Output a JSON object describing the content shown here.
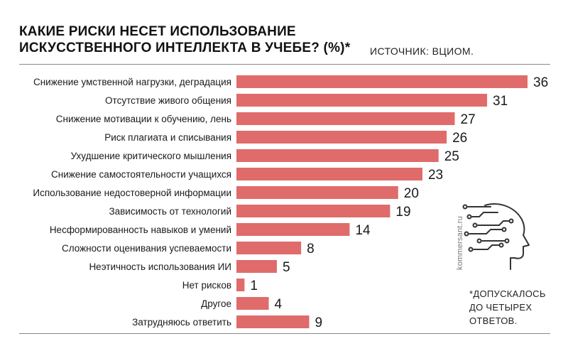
{
  "title_line1": "КАКИЕ РИСКИ НЕСЕТ ИСПОЛЬЗОВАНИЕ",
  "title_line2": "ИСКУССТВЕННОГО ИНТЕЛЛЕКТА В УЧЕБЕ? (%)*",
  "source": "ИСТОЧНИК: ВЦИОМ.",
  "footnote": [
    "*ДОПУСКАЛОСЬ",
    "ДО ЧЕТЫРЕХ",
    "ОТВЕТОВ."
  ],
  "brand": "kommersant.ru",
  "icon": "head-circuit-icon",
  "colors": {
    "bar": "#e06b6b",
    "text": "#1a1a1a"
  },
  "chart_data": {
    "type": "bar",
    "orientation": "horizontal",
    "categories": [
      "Снижение умственной нагрузки, деградация",
      "Отсутствие живого общения",
      "Снижение мотивации к обучению, лень",
      "Риск плагиата и списывания",
      "Ухудшение критического мышления",
      "Снижение самостоятельности учащихся",
      "Использование недостоверной информации",
      "Зависимость от технологий",
      "Несформированность навыков и умений",
      "Сложности оценивания успеваемости",
      "Неэтичность использования ИИ",
      "Нет рисков",
      "Другое",
      "Затрудняюсь ответить"
    ],
    "values": [
      36,
      31,
      27,
      26,
      25,
      23,
      20,
      19,
      14,
      8,
      5,
      1,
      4,
      9
    ],
    "title": "КАКИЕ РИСКИ НЕСЕТ ИСПОЛЬЗОВАНИЕ ИСКУССТВЕННОГО ИНТЕЛЛЕКТА В УЧЕБЕ? (%)*",
    "xlabel": "",
    "ylabel": "",
    "xlim": [
      0,
      36
    ],
    "grid": false,
    "legend": "none"
  }
}
